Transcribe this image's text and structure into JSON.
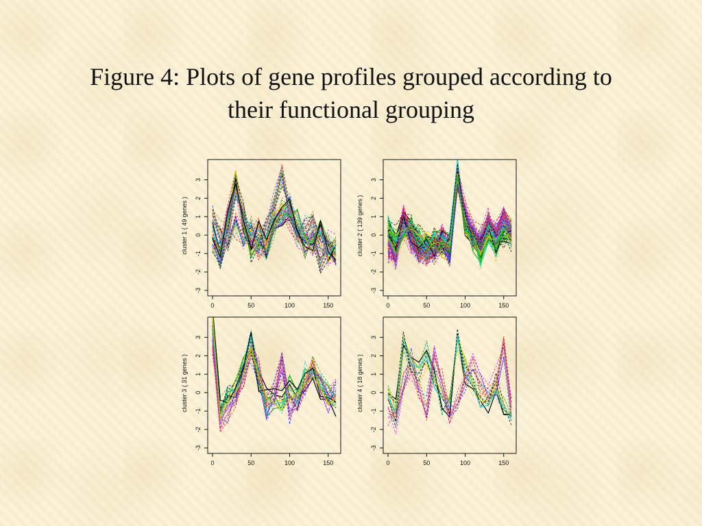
{
  "title": "Figure 4: Plots of gene profiles grouped according to their functional grouping",
  "title_line1": "Figure 4: Plots of gene profiles grouped according to",
  "title_line2": "their functional grouping",
  "chart_data": [
    {
      "type": "line",
      "ylabel": "cluster  1 ( 49 genes )",
      "xlim": [
        0,
        160
      ],
      "ylim": [
        -3,
        3.8
      ],
      "xticks": [
        0,
        50,
        100,
        150
      ],
      "yticks": [
        -3,
        -2,
        -1,
        0,
        1,
        2,
        3
      ],
      "x": [
        0,
        10,
        20,
        30,
        40,
        50,
        60,
        70,
        80,
        90,
        100,
        110,
        120,
        130,
        140,
        150,
        160
      ],
      "n_genes": 49,
      "grid": false,
      "series_summary": [
        {
          "values": [
            0.2,
            -0.8,
            1.2,
            3.0,
            0.5,
            -0.4,
            0.3,
            -0.6,
            0.8,
            1.1,
            1.4,
            0.6,
            -0.2,
            -0.5,
            0.2,
            -0.8,
            -0.9
          ]
        },
        {
          "values": [
            -0.5,
            -1.2,
            0.3,
            2.5,
            1.2,
            -0.8,
            -0.5,
            0.2,
            1.5,
            3.3,
            1.0,
            0.2,
            -0.8,
            0.1,
            -1.5,
            -0.6,
            -0.7
          ]
        },
        {
          "values": [
            1.0,
            0.0,
            -0.3,
            0.6,
            -0.2,
            0.4,
            -0.8,
            -1.0,
            0.5,
            1.2,
            0.9,
            -0.1,
            0.5,
            0.8,
            -0.3,
            -0.5,
            -1.0
          ]
        }
      ]
    },
    {
      "type": "line",
      "ylabel": "cluster  2 ( 139 genes )",
      "xlim": [
        0,
        160
      ],
      "ylim": [
        -3,
        3.8
      ],
      "xticks": [
        0,
        50,
        100,
        150
      ],
      "yticks": [
        -3,
        -2,
        -1,
        0,
        1,
        2,
        3
      ],
      "x": [
        0,
        10,
        20,
        30,
        40,
        50,
        60,
        70,
        80,
        90,
        100,
        110,
        120,
        130,
        140,
        150,
        160
      ],
      "n_genes": 139,
      "grid": false,
      "series_summary": [
        {
          "values": [
            0.3,
            -0.4,
            0.5,
            0.2,
            -0.3,
            -0.6,
            -0.4,
            -0.5,
            -0.6,
            3.4,
            0.6,
            -0.2,
            -0.9,
            0.3,
            -0.5,
            0.2,
            0.0
          ]
        },
        {
          "values": [
            -0.8,
            -1.0,
            0.8,
            -0.2,
            -0.8,
            -0.9,
            -0.7,
            -0.3,
            -0.9,
            3.2,
            1.0,
            0.0,
            -0.3,
            0.6,
            0.1,
            0.8,
            0.2
          ]
        }
      ]
    },
    {
      "type": "line",
      "ylabel": "cluster  3 ( 31 genes )",
      "xlim": [
        0,
        160
      ],
      "ylim": [
        -3,
        3.8
      ],
      "xticks": [
        0,
        50,
        100,
        150
      ],
      "yticks": [
        -3,
        -2,
        -1,
        0,
        1,
        2,
        3
      ],
      "x": [
        0,
        10,
        20,
        30,
        40,
        50,
        60,
        70,
        80,
        90,
        100,
        110,
        120,
        130,
        140,
        150,
        160
      ],
      "n_genes": 31,
      "grid": false,
      "series_summary": [
        {
          "values": [
            3.8,
            -1.0,
            -0.2,
            0.4,
            1.5,
            2.6,
            0.5,
            -0.5,
            -0.3,
            -0.6,
            0.2,
            -0.4,
            0.8,
            1.5,
            0.3,
            -0.2,
            -0.5
          ]
        },
        {
          "values": [
            2.8,
            -1.5,
            -0.8,
            -0.4,
            0.8,
            2.2,
            1.2,
            -0.8,
            -0.2,
            1.5,
            -0.8,
            -0.5,
            0.4,
            1.2,
            0.6,
            -0.3,
            0.2
          ]
        }
      ]
    },
    {
      "type": "line",
      "ylabel": "cluster  4 ( 18 genes )",
      "xlim": [
        0,
        160
      ],
      "ylim": [
        -3,
        3.8
      ],
      "xticks": [
        0,
        50,
        100,
        150
      ],
      "yticks": [
        -3,
        -2,
        -1,
        0,
        1,
        2,
        3
      ],
      "x": [
        0,
        10,
        20,
        30,
        40,
        50,
        60,
        70,
        80,
        90,
        100,
        110,
        120,
        130,
        140,
        150,
        160
      ],
      "n_genes": 18,
      "grid": false,
      "series_summary": [
        {
          "values": [
            -0.2,
            -1.2,
            3.2,
            1.5,
            1.0,
            2.0,
            0.8,
            -0.5,
            -0.8,
            2.8,
            1.2,
            0.5,
            -0.3,
            -0.6,
            0.4,
            -0.8,
            -1.2
          ]
        },
        {
          "values": [
            -1.0,
            -1.5,
            0.5,
            1.6,
            0.3,
            -0.8,
            1.8,
            0.6,
            -1.0,
            -0.6,
            0.8,
            1.3,
            0.4,
            -0.3,
            0.6,
            2.3,
            -1.0
          ]
        }
      ]
    }
  ],
  "colors": [
    "#000000",
    "#e41a1c",
    "#1fb51f",
    "#1f2cff",
    "#13d0d0",
    "#e21ee2",
    "#d0c800",
    "#888888"
  ]
}
